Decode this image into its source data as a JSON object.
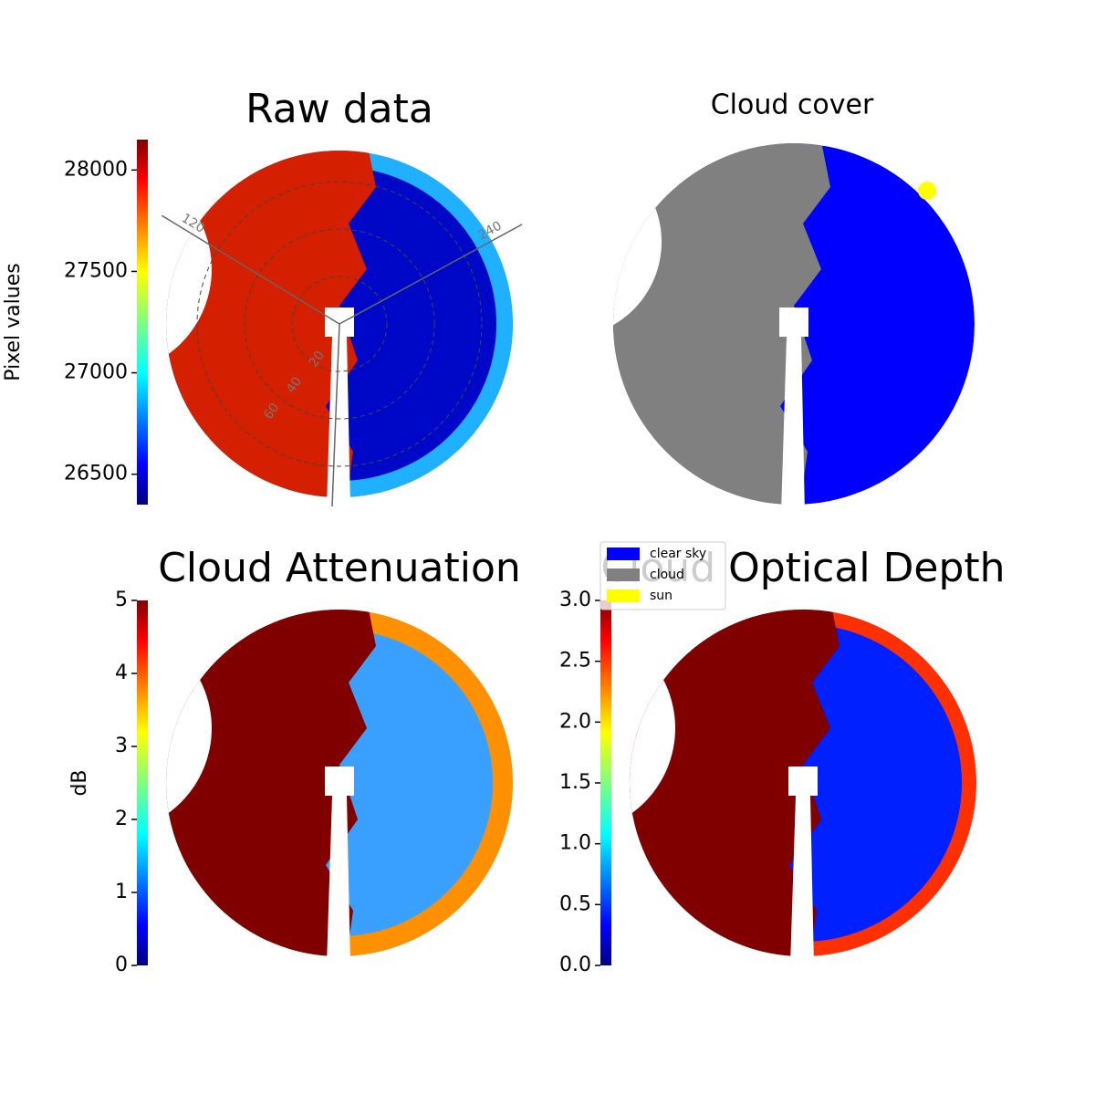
{
  "chart_data": [
    {
      "type": "heatmap",
      "title": "Raw data",
      "ylabel": "Pixel values",
      "colormap": "jet",
      "ylim": [
        26350,
        28150
      ],
      "yticks": [
        26500,
        27000,
        27500,
        28000
      ],
      "polar_grid": {
        "radial_ticks": [
          20,
          40,
          60
        ],
        "azimuth_ticks": [
          120,
          240
        ]
      }
    },
    {
      "type": "categorical",
      "title": "Cloud cover",
      "legend": [
        {
          "name": "clear sky",
          "color": "#0000ff"
        },
        {
          "name": "cloud",
          "color": "#808080"
        },
        {
          "name": "sun",
          "color": "#ffff00"
        }
      ]
    },
    {
      "type": "heatmap",
      "title": "Cloud Attenuation",
      "ylabel": "dB",
      "colormap": "jet",
      "ylim": [
        0,
        5
      ],
      "yticks": [
        0,
        1,
        2,
        3,
        4,
        5
      ]
    },
    {
      "type": "heatmap",
      "title": "Cloud Optical Depth",
      "colormap": "jet",
      "ylim": [
        0,
        3
      ],
      "yticks": [
        {
          "value": 0,
          "label": "0.0"
        },
        {
          "value": 0.5,
          "label": "0.5"
        },
        {
          "value": 1,
          "label": "1.0"
        },
        {
          "value": 1.5,
          "label": "1.5"
        },
        {
          "value": 2,
          "label": "2.0"
        },
        {
          "value": 2.5,
          "label": "2.5"
        },
        {
          "value": 3,
          "label": "3.0"
        }
      ]
    }
  ]
}
